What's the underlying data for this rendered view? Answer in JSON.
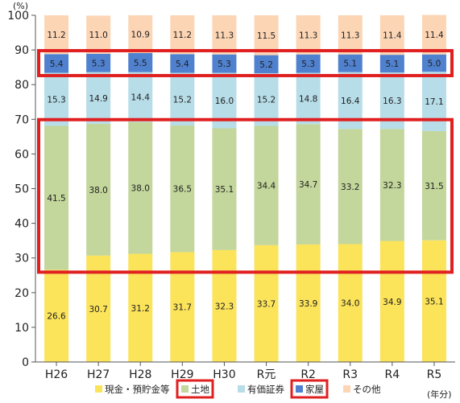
{
  "chart_data": {
    "type": "bar",
    "stacked": true,
    "y_unit": "(%)",
    "x_unit": "(年分)",
    "ylim": [
      0,
      100
    ],
    "yticks": [
      0,
      10,
      20,
      30,
      40,
      50,
      60,
      70,
      80,
      90,
      100
    ],
    "categories": [
      "H26",
      "H27",
      "H28",
      "H29",
      "H30",
      "R元",
      "R2",
      "R3",
      "R4",
      "R5"
    ],
    "series": [
      {
        "name": "現金・預貯金等",
        "color": "#fbe35a",
        "values": [
          26.6,
          30.7,
          31.2,
          31.7,
          32.3,
          33.7,
          33.9,
          34.0,
          34.9,
          35.1
        ]
      },
      {
        "name": "土地",
        "color": "#c3d69b",
        "values": [
          41.5,
          38.0,
          38.0,
          36.5,
          35.1,
          34.4,
          34.7,
          33.2,
          32.3,
          31.5
        ]
      },
      {
        "name": "有価証券",
        "color": "#b7dde8",
        "values": [
          15.3,
          14.9,
          14.4,
          15.2,
          16.0,
          15.2,
          14.8,
          16.4,
          16.3,
          17.1
        ]
      },
      {
        "name": "家屋",
        "color": "#4f81cf",
        "values": [
          5.4,
          5.3,
          5.5,
          5.4,
          5.3,
          5.2,
          5.3,
          5.1,
          5.1,
          5.0
        ]
      },
      {
        "name": "その他",
        "color": "#fcd5b5",
        "values": [
          11.2,
          11.0,
          10.9,
          11.2,
          11.3,
          11.5,
          11.3,
          11.3,
          11.4,
          11.4
        ]
      }
    ],
    "highlight_color": "#e02020",
    "highlighted_series": [
      "土地",
      "家屋"
    ],
    "grid": false,
    "legend_position": "bottom"
  }
}
